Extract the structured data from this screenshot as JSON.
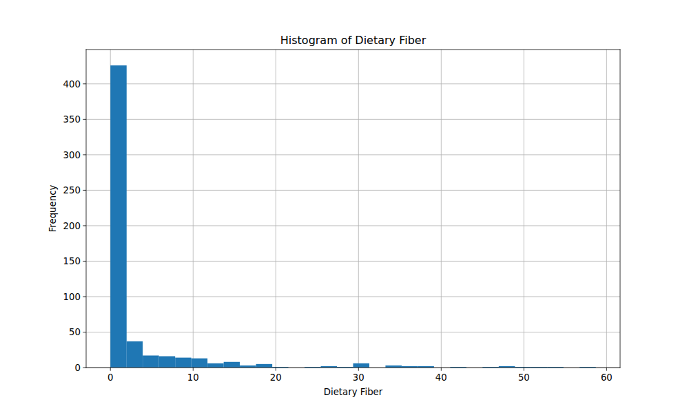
{
  "chart_data": {
    "type": "histogram",
    "title": "Histogram of Dietary Fiber",
    "x_label": "Dietary Fiber",
    "y_label": "Frequency",
    "bins": [
      0,
      1.96,
      3.91,
      5.87,
      7.83,
      9.78,
      11.74,
      13.7,
      15.65,
      17.61,
      19.57,
      21.52,
      23.48,
      25.44,
      27.39,
      29.35,
      31.31,
      33.26,
      35.22,
      37.18,
      39.13,
      41.09,
      43.05,
      45.0,
      46.96,
      48.92,
      50.87,
      52.83,
      54.79,
      56.74,
      58.7
    ],
    "values": [
      426,
      37,
      17,
      16,
      14,
      13,
      6,
      8,
      3,
      5,
      1,
      0,
      1,
      2,
      1,
      6,
      0,
      3,
      2,
      2,
      0,
      1,
      0,
      1,
      2,
      1,
      1,
      1,
      0,
      1
    ],
    "color": "#1f77b4",
    "xlim": [
      -2.935,
      61.635
    ],
    "xticks": [
      0,
      10,
      20,
      30,
      40,
      50,
      60
    ],
    "ylim": [
      0,
      448.35
    ],
    "yticks": [
      0,
      50,
      100,
      150,
      200,
      250,
      300,
      350,
      400
    ],
    "grid": true
  }
}
